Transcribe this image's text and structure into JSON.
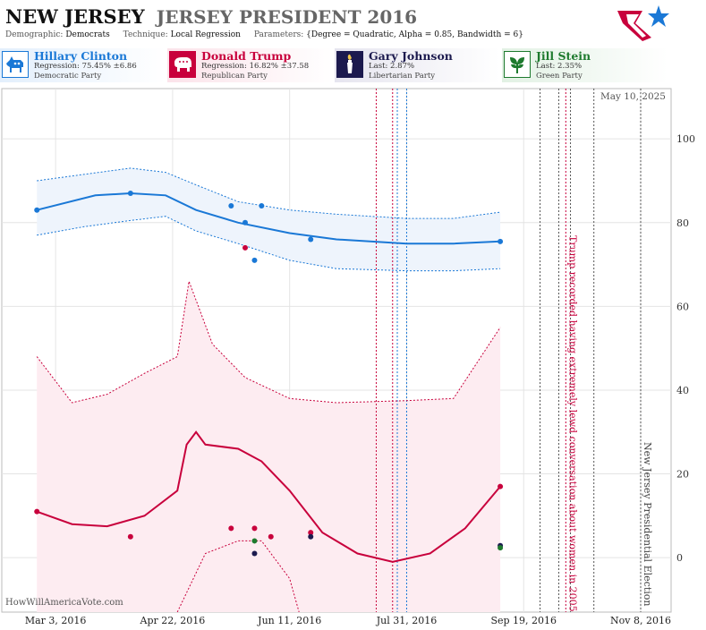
{
  "header": {
    "state": "NEW JERSEY",
    "race": "JERSEY PRESIDENT 2016",
    "demographic_label": "Demographic:",
    "demographic": "Democrats",
    "technique_label": "Technique:",
    "technique": "Local Regression",
    "parameters_label": "Parameters:",
    "parameters": "{Degree = Quadratic, Alpha = 0.85, Bandwidth = 6}"
  },
  "candidates": [
    {
      "name": "Hillary Clinton",
      "stat": "Regression: 75.45% ±6.86",
      "party": "Democratic Party",
      "color": "#1a78d6",
      "icon": "donkey-icon"
    },
    {
      "name": "Donald Trump",
      "stat": "Regression: 16.82% ±37.58",
      "party": "Republican Party",
      "color": "#c8003c",
      "icon": "elephant-icon"
    },
    {
      "name": "Gary Johnson",
      "stat": "Last: 2.87%",
      "party": "Libertarian Party",
      "color": "#1c1a4e",
      "icon": "torch-icon"
    },
    {
      "name": "Jill Stein",
      "stat": "Last: 2.35%",
      "party": "Green Party",
      "color": "#1e7a2e",
      "icon": "leaf-icon"
    }
  ],
  "watermark": "HowWillAmericaVote.com",
  "chart_data": {
    "type": "line",
    "date_label": "May 10, 2025",
    "x_tick_labels": [
      "Mar 3, 2016",
      "Apr 22, 2016",
      "Jun 11, 2016",
      "Jul 31, 2016",
      "Sep 19, 2016",
      "Nov 8, 2016"
    ],
    "x_ticks": [
      "2016-03-03",
      "2016-04-22",
      "2016-06-11",
      "2016-07-31",
      "2016-09-19",
      "2016-11-08"
    ],
    "xlim": [
      "2016-02-09",
      "2016-11-21"
    ],
    "y_ticks": [
      0,
      20,
      40,
      60,
      80,
      100
    ],
    "ylim": [
      -13,
      112
    ],
    "grid": true,
    "series": [
      {
        "name": "Hillary Clinton",
        "color": "#1a78d6",
        "line": [
          [
            "2016-02-24",
            83
          ],
          [
            "2016-03-20",
            86.5
          ],
          [
            "2016-04-04",
            87
          ],
          [
            "2016-04-19",
            86.5
          ],
          [
            "2016-05-02",
            83
          ],
          [
            "2016-05-20",
            80
          ],
          [
            "2016-06-11",
            77.5
          ],
          [
            "2016-07-01",
            76
          ],
          [
            "2016-07-31",
            75
          ],
          [
            "2016-08-20",
            75
          ],
          [
            "2016-09-09",
            75.5
          ]
        ],
        "upper": [
          [
            "2016-02-24",
            90
          ],
          [
            "2016-03-15",
            91.5
          ],
          [
            "2016-04-04",
            93
          ],
          [
            "2016-04-19",
            92
          ],
          [
            "2016-05-02",
            89
          ],
          [
            "2016-05-20",
            85
          ],
          [
            "2016-06-11",
            83
          ],
          [
            "2016-07-01",
            82
          ],
          [
            "2016-07-31",
            81
          ],
          [
            "2016-08-20",
            81
          ],
          [
            "2016-09-09",
            82.5
          ]
        ],
        "lower": [
          [
            "2016-02-24",
            77
          ],
          [
            "2016-03-15",
            79
          ],
          [
            "2016-04-04",
            80.5
          ],
          [
            "2016-04-19",
            81.5
          ],
          [
            "2016-05-02",
            78
          ],
          [
            "2016-05-20",
            75
          ],
          [
            "2016-06-11",
            71
          ],
          [
            "2016-07-01",
            69
          ],
          [
            "2016-07-31",
            68.5
          ],
          [
            "2016-08-20",
            68.5
          ],
          [
            "2016-09-09",
            69
          ]
        ],
        "points": [
          [
            "2016-02-24",
            83
          ],
          [
            "2016-04-04",
            87
          ],
          [
            "2016-05-17",
            84
          ],
          [
            "2016-05-23",
            80
          ],
          [
            "2016-05-27",
            71
          ],
          [
            "2016-05-30",
            84
          ],
          [
            "2016-06-20",
            76
          ],
          [
            "2016-09-09",
            75.5
          ]
        ]
      },
      {
        "name": "Donald Trump",
        "color": "#c8003c",
        "line": [
          [
            "2016-02-24",
            11
          ],
          [
            "2016-03-10",
            8
          ],
          [
            "2016-03-25",
            7.5
          ],
          [
            "2016-04-10",
            10
          ],
          [
            "2016-04-24",
            16
          ],
          [
            "2016-04-28",
            27
          ],
          [
            "2016-05-02",
            30
          ],
          [
            "2016-05-06",
            27
          ],
          [
            "2016-05-20",
            26
          ],
          [
            "2016-05-30",
            23
          ],
          [
            "2016-06-11",
            16
          ],
          [
            "2016-06-25",
            6
          ],
          [
            "2016-07-10",
            1
          ],
          [
            "2016-07-25",
            -1
          ],
          [
            "2016-08-10",
            1
          ],
          [
            "2016-08-25",
            7
          ],
          [
            "2016-09-09",
            17
          ]
        ],
        "upper": [
          [
            "2016-02-24",
            48
          ],
          [
            "2016-03-10",
            37
          ],
          [
            "2016-03-25",
            39
          ],
          [
            "2016-04-10",
            44
          ],
          [
            "2016-04-24",
            48
          ],
          [
            "2016-04-29",
            66
          ],
          [
            "2016-05-09",
            51
          ],
          [
            "2016-05-23",
            43
          ],
          [
            "2016-06-11",
            38
          ],
          [
            "2016-07-01",
            37
          ],
          [
            "2016-07-31",
            37.5
          ],
          [
            "2016-08-20",
            38
          ],
          [
            "2016-09-09",
            55
          ]
        ],
        "lower": [
          [
            "2016-04-24",
            -13
          ],
          [
            "2016-05-06",
            1
          ],
          [
            "2016-05-20",
            4
          ],
          [
            "2016-05-30",
            4
          ],
          [
            "2016-06-11",
            -5
          ],
          [
            "2016-06-15",
            -13
          ]
        ],
        "band_fill_lower": -13,
        "points": [
          [
            "2016-02-24",
            11
          ],
          [
            "2016-04-04",
            5
          ],
          [
            "2016-05-17",
            7
          ],
          [
            "2016-05-23",
            74
          ],
          [
            "2016-05-27",
            7
          ],
          [
            "2016-06-03",
            5
          ],
          [
            "2016-06-20",
            6
          ],
          [
            "2016-09-09",
            17
          ]
        ]
      },
      {
        "name": "Gary Johnson",
        "color": "#1c1a4e",
        "points": [
          [
            "2016-05-27",
            1
          ],
          [
            "2016-06-20",
            5
          ],
          [
            "2016-09-09",
            2.87
          ]
        ]
      },
      {
        "name": "Jill Stein",
        "color": "#1e7a2e",
        "points": [
          [
            "2016-05-27",
            4
          ],
          [
            "2016-09-09",
            2.35
          ]
        ]
      }
    ],
    "event_lines": [
      {
        "date": "2016-07-25",
        "color": "#c8003c"
      },
      {
        "date": "2016-07-27",
        "color": "#1a78d6"
      },
      {
        "date": "2016-07-31",
        "color": "#1a78d6"
      },
      {
        "date": "2016-07-18",
        "color": "#c8003c"
      },
      {
        "date": "2016-09-26",
        "color": "#555"
      },
      {
        "date": "2016-10-04",
        "color": "#555"
      },
      {
        "date": "2016-10-07",
        "color": "#c8003c"
      },
      {
        "date": "2016-10-09",
        "color": "#555"
      },
      {
        "date": "2016-10-19",
        "color": "#555"
      },
      {
        "date": "2016-11-08",
        "color": "#555"
      }
    ],
    "annotations": [
      {
        "text": "Trump recorded having extremely lewd conversation about women in 2005",
        "date": "2016-10-07",
        "color": "#c8003c"
      },
      {
        "text": "New Jersey Presidential Election",
        "date": "2016-11-08",
        "color": "#444"
      }
    ]
  }
}
